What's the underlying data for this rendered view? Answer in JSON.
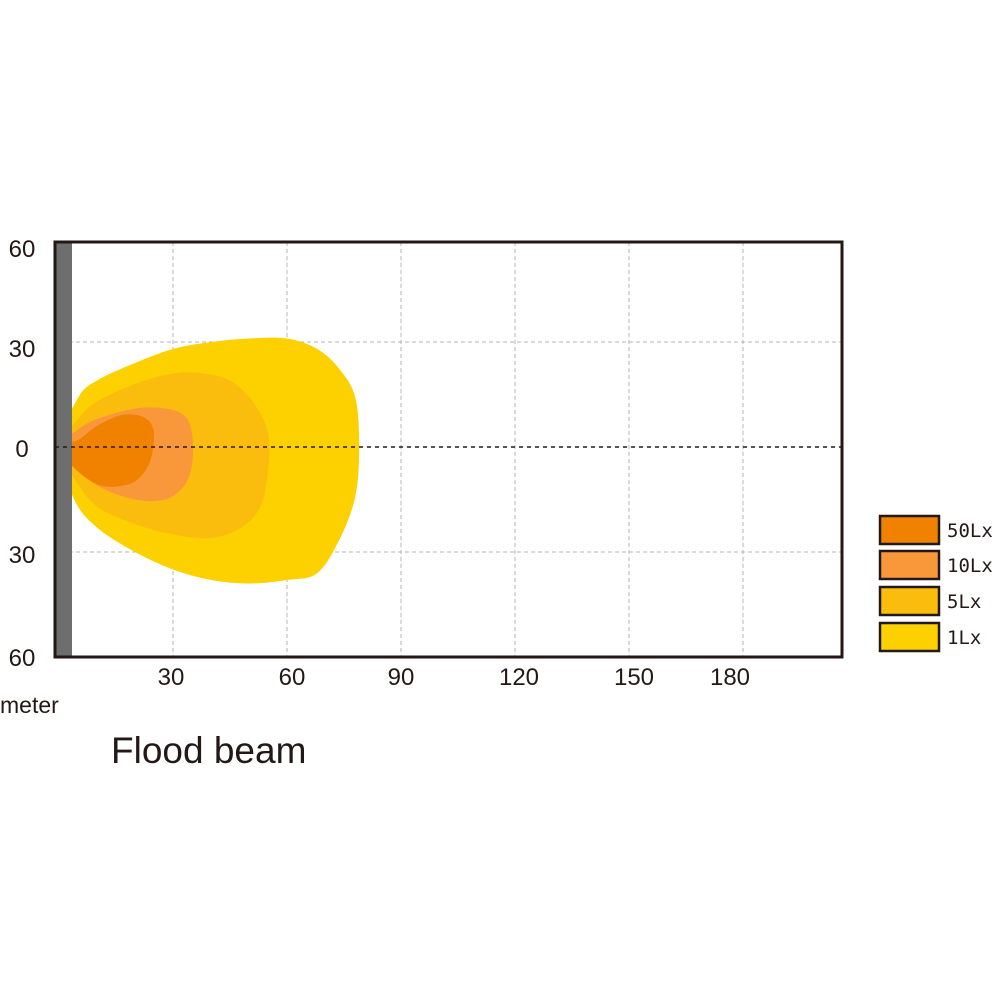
{
  "chart_data": {
    "type": "area",
    "title": "Flood beam",
    "xlabel": "meter",
    "ylabel": "",
    "x_ticks": [
      "30",
      "60",
      "90",
      "120",
      "150",
      "180"
    ],
    "y_ticks": [
      "60",
      "30",
      "0",
      "30",
      "60"
    ],
    "x_tick_values": [
      30,
      60,
      90,
      120,
      150,
      180
    ],
    "y_tick_values": [
      60,
      30,
      0,
      -30,
      -60
    ],
    "xlim": [
      0,
      200
    ],
    "ylim": [
      -60,
      60
    ],
    "grid": true,
    "legend_position": "right",
    "series": [
      {
        "name": "1Lx",
        "color": "#fdd000",
        "points": [
          [
            0,
            0
          ],
          [
            5,
            14
          ],
          [
            10,
            19
          ],
          [
            20,
            24
          ],
          [
            30,
            28
          ],
          [
            40,
            30
          ],
          [
            50,
            31
          ],
          [
            60,
            31
          ],
          [
            68,
            28
          ],
          [
            74,
            22
          ],
          [
            78,
            14
          ],
          [
            79,
            0
          ],
          [
            78,
            -14
          ],
          [
            74,
            -26
          ],
          [
            68,
            -36
          ],
          [
            60,
            -38
          ],
          [
            50,
            -39
          ],
          [
            40,
            -38
          ],
          [
            30,
            -35
          ],
          [
            20,
            -30
          ],
          [
            10,
            -23
          ],
          [
            4,
            -15
          ]
        ]
      },
      {
        "name": "5Lx",
        "color": "#fbbd0d",
        "points": [
          [
            0,
            0
          ],
          [
            5,
            8
          ],
          [
            10,
            13
          ],
          [
            20,
            18
          ],
          [
            30,
            21
          ],
          [
            38,
            21
          ],
          [
            45,
            19
          ],
          [
            51,
            13
          ],
          [
            55,
            4
          ],
          [
            55,
            -7
          ],
          [
            53,
            -17
          ],
          [
            48,
            -23
          ],
          [
            40,
            -26
          ],
          [
            30,
            -25
          ],
          [
            20,
            -22
          ],
          [
            10,
            -17
          ],
          [
            4,
            -9
          ]
        ]
      },
      {
        "name": "10Lx",
        "color": "#f9973b",
        "points": [
          [
            0,
            0
          ],
          [
            5,
            5
          ],
          [
            10,
            8
          ],
          [
            20,
            11
          ],
          [
            28,
            11
          ],
          [
            33,
            9
          ],
          [
            35,
            4
          ],
          [
            35,
            -5
          ],
          [
            33,
            -11
          ],
          [
            28,
            -15
          ],
          [
            20,
            -15
          ],
          [
            10,
            -11
          ],
          [
            4,
            -5
          ]
        ]
      },
      {
        "name": "50Lx",
        "color": "#f08200",
        "points": [
          [
            0,
            0
          ],
          [
            5,
            2
          ],
          [
            10,
            6
          ],
          [
            16,
            9
          ],
          [
            21,
            9
          ],
          [
            24,
            7
          ],
          [
            25,
            3
          ],
          [
            24,
            -4
          ],
          [
            21,
            -9
          ],
          [
            17,
            -11
          ],
          [
            11,
            -11
          ],
          [
            5,
            -7
          ]
        ]
      }
    ],
    "legend": [
      {
        "label": "50Lx",
        "color": "#f08200"
      },
      {
        "label": "10Lx",
        "color": "#f9973b"
      },
      {
        "label": "5Lx",
        "color": "#fbbd0d"
      },
      {
        "label": "1Lx",
        "color": "#fdd000"
      }
    ]
  },
  "colors": {
    "frame": "#231815",
    "grid": "#b5b5b5",
    "lamp_bar": "#6e6e6e",
    "centerline": "#231815"
  }
}
